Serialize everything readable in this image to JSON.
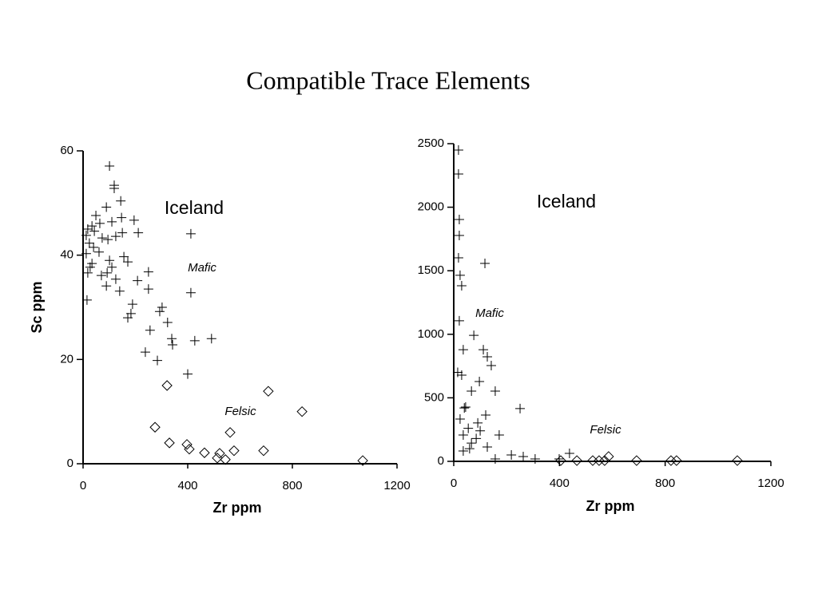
{
  "title": "Compatible Trace Elements",
  "chart_data": [
    {
      "type": "scatter",
      "annotation": "Iceland",
      "x_label": "Zr ppm",
      "y_label": "Sc ppm",
      "xlim": [
        0,
        1200
      ],
      "xticks": [
        0,
        400,
        800,
        1200
      ],
      "ylim": [
        0,
        60
      ],
      "yticks": [
        0,
        20,
        40,
        60
      ],
      "series": [
        {
          "name": "Mafic",
          "color": "#000000",
          "marker": "plus",
          "x": [
            101,
            119,
            119,
            144,
            89,
            49,
            195,
            147,
            110,
            64,
            34,
            18,
            211,
            150,
            412,
            43,
            12,
            73,
            95,
            125,
            24,
            40,
            12,
            61,
            156,
            101,
            171,
            34,
            110,
            250,
            18,
            92,
            208,
            125,
            250,
            89,
            140,
            412,
            15,
            189,
            302,
            293,
            183,
            171,
            323,
            256,
            339,
            427,
            491,
            342,
            238,
            284,
            400,
            27,
            70
          ],
          "values": [
            57.1,
            53.4,
            52.8,
            50.4,
            49.2,
            47.6,
            46.7,
            47.2,
            46.4,
            46.1,
            45.6,
            45,
            44.3,
            44.3,
            44.1,
            44.6,
            43.8,
            43.3,
            43,
            43.6,
            42.3,
            41.5,
            40.3,
            40.6,
            39.7,
            39,
            38.7,
            38.4,
            37.7,
            36.8,
            36.6,
            36.6,
            35.1,
            35.4,
            33.5,
            34.1,
            33.1,
            32.8,
            31.4,
            30.6,
            30,
            29.2,
            28.8,
            28,
            27.1,
            25.6,
            24,
            23.6,
            24,
            22.8,
            21.4,
            19.8,
            17.2,
            37.7,
            36.1
          ]
        },
        {
          "name": "Felsic",
          "color": "#000000",
          "marker": "diamond",
          "x": [
            321,
            708,
            837,
            275,
            562,
            330,
            397,
            406,
            577,
            464,
            690,
            522,
            513,
            544,
            1069
          ],
          "values": [
            15,
            13.9,
            10,
            7,
            6,
            4,
            3.7,
            2.8,
            2.5,
            2.1,
            2.5,
            2,
            1.1,
            0.8,
            0.6
          ]
        }
      ]
    },
    {
      "type": "scatter",
      "annotation": "Iceland",
      "x_label": "Zr ppm",
      "xlim": [
        0,
        1200
      ],
      "xticks": [
        0,
        400,
        800,
        1200
      ],
      "ylim": [
        0,
        2500
      ],
      "yticks": [
        0,
        500,
        1000,
        1500,
        2000,
        2500
      ],
      "series": [
        {
          "name": "Mafic",
          "color": "#000000",
          "marker": "plus",
          "x": [
            18,
            18,
            21,
            21,
            18,
            24,
            30,
            118,
            21,
            76,
            36,
            112,
            127,
            142,
            30,
            97,
            67,
            157,
            45,
            121,
            251,
            24,
            91,
            36,
            172,
            67,
            127,
            36,
            218,
            399,
            438,
            308,
            157,
            263,
            40,
            55,
            15,
            85,
            100,
            60
          ],
          "values": [
            2450,
            2261,
            1903,
            1778,
            1602,
            1464,
            1382,
            1558,
            1106,
            992,
            879,
            879,
            823,
            754,
            678,
            628,
            553,
            553,
            427,
            364,
            415,
            333,
            302,
            207,
            207,
            144,
            113,
            82,
            50,
            19,
            63,
            19,
            19,
            38,
            420,
            260,
            700,
            180,
            240,
            100
          ]
        },
        {
          "name": "Felsic",
          "color": "#000000",
          "marker": "diamond",
          "x": [
            405,
            466,
            526,
            550,
            571,
            586,
            692,
            822,
            843,
            1073
          ],
          "values": [
            6,
            6,
            6,
            6,
            6,
            38,
            6,
            6,
            6,
            6
          ]
        }
      ]
    }
  ]
}
